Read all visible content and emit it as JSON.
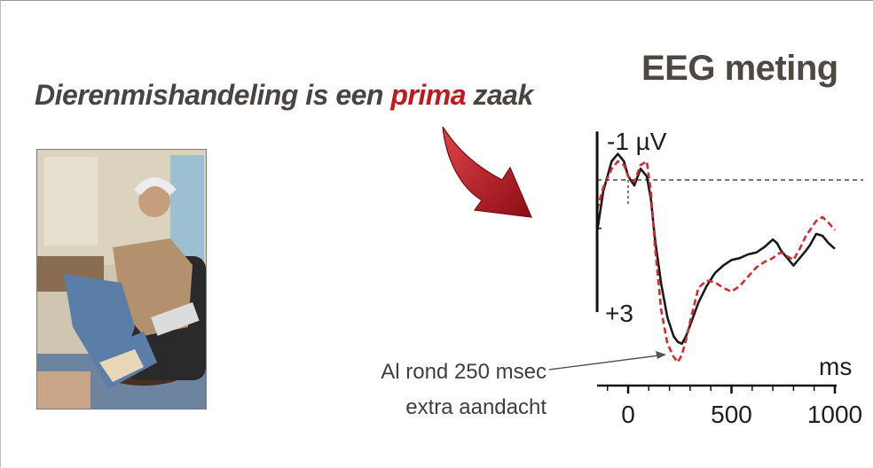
{
  "headline": {
    "before": "Dierenmishandeling is een ",
    "highlight": "prima",
    "after": " zaak",
    "highlight_color": "#c0181d"
  },
  "chart_data": {
    "type": "line",
    "title": "EEG meting",
    "xlabel": "ms",
    "ylabel": "",
    "xlim": [
      -150,
      1000
    ],
    "x_ticks": [
      0,
      500,
      1000
    ],
    "y_tick_labels": [
      "-1 µV",
      "+3"
    ],
    "y_inverted": true,
    "baseline": {
      "y": 0,
      "style": "dashed"
    },
    "annotation": {
      "line1": "Al rond 250 msec",
      "line2": "extra aandacht",
      "target_x": 250
    },
    "series": [
      {
        "color": "#1a1a1a",
        "style": "solid",
        "x": [
          -150,
          -120,
          -80,
          -50,
          -20,
          0,
          30,
          60,
          90,
          110,
          130,
          160,
          190,
          220,
          240,
          260,
          280,
          300,
          340,
          380,
          420,
          460,
          500,
          540,
          580,
          620,
          660,
          700,
          720,
          740,
          770,
          800,
          830,
          860,
          880,
          910,
          940,
          970,
          1000
        ],
        "y": [
          1.4,
          0.3,
          -0.5,
          -0.7,
          -0.5,
          -0.1,
          0.15,
          -0.3,
          -0.1,
          0.5,
          1.6,
          2.8,
          3.7,
          4.2,
          4.35,
          4.4,
          4.2,
          3.9,
          3.3,
          2.85,
          2.5,
          2.3,
          2.15,
          2.1,
          2.0,
          1.95,
          1.8,
          1.6,
          1.7,
          1.9,
          2.1,
          2.3,
          2.1,
          1.9,
          1.75,
          1.45,
          1.5,
          1.7,
          1.85
        ]
      },
      {
        "color": "#d42a32",
        "style": "dashed",
        "x": [
          -150,
          -120,
          -80,
          -50,
          -20,
          0,
          30,
          60,
          90,
          110,
          130,
          160,
          190,
          220,
          240,
          260,
          280,
          300,
          340,
          380,
          420,
          460,
          500,
          540,
          580,
          620,
          660,
          700,
          720,
          740,
          770,
          800,
          830,
          860,
          880,
          910,
          940,
          970,
          1000
        ],
        "y": [
          0.8,
          0.2,
          -0.3,
          -0.5,
          -0.4,
          -0.1,
          0.05,
          -0.4,
          -0.5,
          0.3,
          1.8,
          3.5,
          4.4,
          4.75,
          4.9,
          4.7,
          4.3,
          3.8,
          2.9,
          2.7,
          2.75,
          2.9,
          3.0,
          2.85,
          2.6,
          2.35,
          2.2,
          2.1,
          2.0,
          1.95,
          2.05,
          2.15,
          1.85,
          1.5,
          1.35,
          1.1,
          1.0,
          1.15,
          1.35
        ]
      }
    ]
  },
  "colors": {
    "red_arrow": "#b3131b",
    "title_text": "#4e4843"
  }
}
